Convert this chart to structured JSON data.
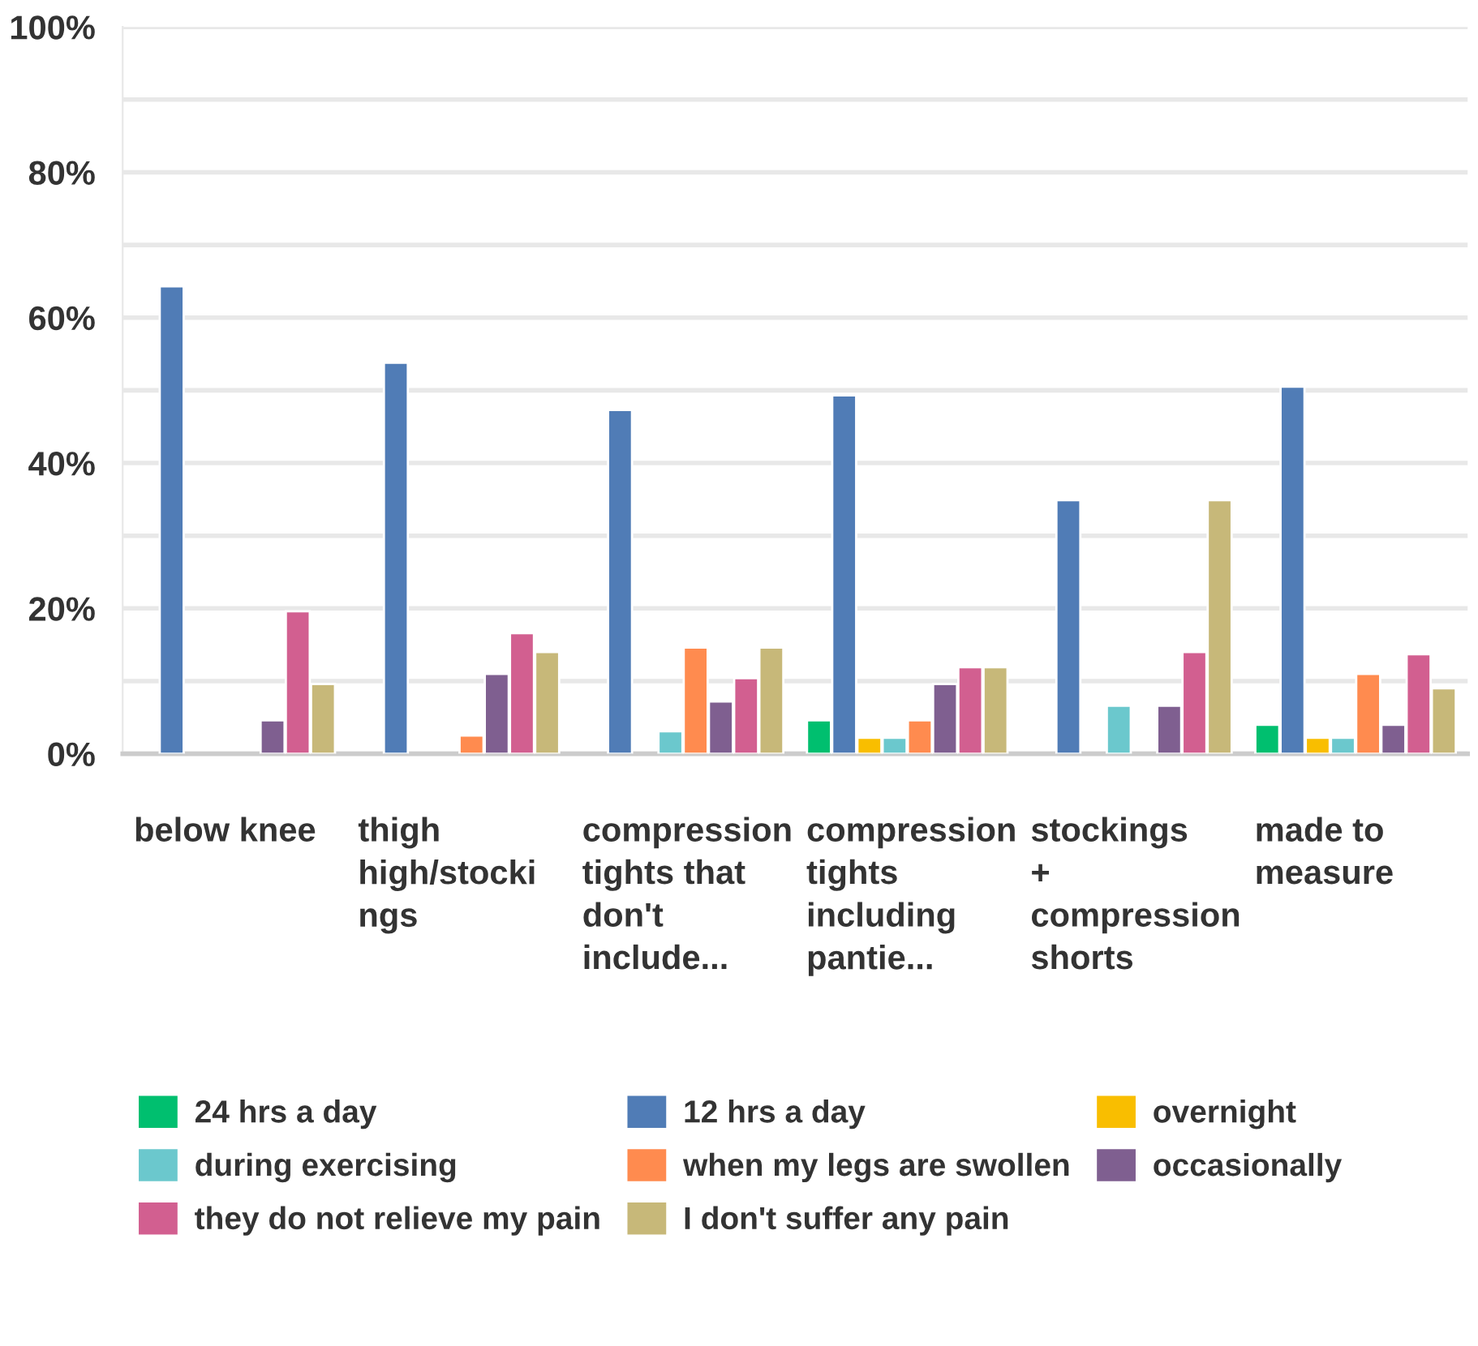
{
  "chart_data": {
    "type": "bar",
    "categories": [
      "below knee",
      "thigh\nhigh/stocki\nngs",
      "compression\ntights that\ndon't\ninclude...",
      "compression\ntights\nincluding\npantie...",
      "stockings\n+\ncompression\nshorts",
      "made to\nmeasure"
    ],
    "series": [
      {
        "name": "24 hrs a day",
        "color": "#00bf6f",
        "values": [
          null,
          null,
          null,
          4.6,
          null,
          4
        ]
      },
      {
        "name": "12 hrs a day",
        "color": "#507cb6",
        "values": [
          64.3,
          53.8,
          47.3,
          49.3,
          34.9,
          50.5
        ]
      },
      {
        "name": "overnight",
        "color": "#f9be00",
        "values": [
          null,
          null,
          null,
          2.2,
          null,
          2.2
        ]
      },
      {
        "name": "during exercising",
        "color": "#6bc8cd",
        "values": [
          null,
          null,
          3.1,
          2.2,
          6.6,
          2.2
        ]
      },
      {
        "name": "when my legs are swollen",
        "color": "#ff8b4f",
        "values": [
          null,
          2.5,
          14.6,
          4.6,
          null,
          11
        ]
      },
      {
        "name": "occasionally",
        "color": "#7f5f90",
        "values": [
          4.6,
          11,
          7.2,
          9.6,
          6.6,
          4
        ]
      },
      {
        "name": "they do not relieve my pain",
        "color": "#d25f90",
        "values": [
          19.6,
          16.6,
          10.4,
          11.9,
          14,
          13.7
        ]
      },
      {
        "name": "I don't suffer any pain",
        "color": "#c7b879",
        "values": [
          9.6,
          14,
          14.6,
          11.9,
          34.9,
          9
        ]
      }
    ],
    "ylim": [
      0,
      100
    ],
    "yticks": [
      {
        "value": 0,
        "label": "0%"
      },
      {
        "value": 10,
        "label": null
      },
      {
        "value": 20,
        "label": "20%"
      },
      {
        "value": 30,
        "label": null
      },
      {
        "value": 40,
        "label": "40%"
      },
      {
        "value": 50,
        "label": null
      },
      {
        "value": 60,
        "label": "60%"
      },
      {
        "value": 70,
        "label": null
      },
      {
        "value": 80,
        "label": "80%"
      },
      {
        "value": 90,
        "label": null
      },
      {
        "value": 100,
        "label": "100%"
      }
    ],
    "grid": "y",
    "legend": "bottom"
  }
}
